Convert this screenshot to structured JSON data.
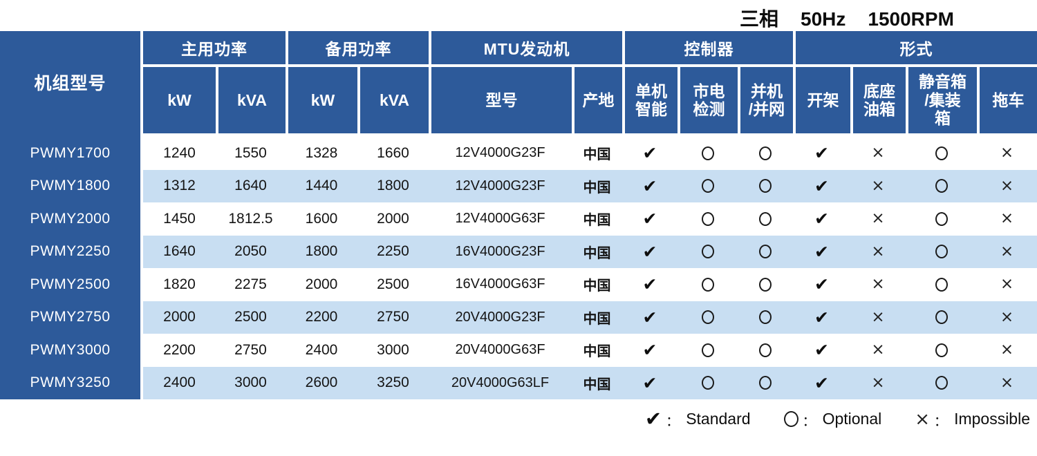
{
  "title": {
    "phase": "三相",
    "frequency": "50Hz",
    "speed": "1500RPM"
  },
  "table": {
    "model_header": "机组型号",
    "groups": [
      {
        "label": "主用功率",
        "subs": [
          "kW",
          "kVA"
        ]
      },
      {
        "label": "备用功率",
        "subs": [
          "kW",
          "kVA"
        ]
      },
      {
        "label": "MTU发动机",
        "subs": [
          "型号",
          "产地"
        ]
      },
      {
        "label": "控制器",
        "subs": [
          "单机\n智能",
          "市电\n检测",
          "并机\n/并网"
        ]
      },
      {
        "label": "形式",
        "subs": [
          "开架",
          "底座\n油箱",
          "静音箱\n/集装\n箱",
          "拖车"
        ]
      }
    ],
    "rows": [
      {
        "model": "PWMY1700",
        "prime_kw": "1240",
        "prime_kva": "1550",
        "standby_kw": "1328",
        "standby_kva": "1660",
        "engine": "12V4000G23F",
        "origin": "中国",
        "options": [
          "check",
          "circle",
          "circle",
          "check",
          "cross",
          "circle",
          "cross"
        ]
      },
      {
        "model": "PWMY1800",
        "prime_kw": "1312",
        "prime_kva": "1640",
        "standby_kw": "1440",
        "standby_kva": "1800",
        "engine": "12V4000G23F",
        "origin": "中国",
        "options": [
          "check",
          "circle",
          "circle",
          "check",
          "cross",
          "circle",
          "cross"
        ]
      },
      {
        "model": "PWMY2000",
        "prime_kw": "1450",
        "prime_kva": "1812.5",
        "standby_kw": "1600",
        "standby_kva": "2000",
        "engine": "12V4000G63F",
        "origin": "中国",
        "options": [
          "check",
          "circle",
          "circle",
          "check",
          "cross",
          "circle",
          "cross"
        ]
      },
      {
        "model": "PWMY2250",
        "prime_kw": "1640",
        "prime_kva": "2050",
        "standby_kw": "1800",
        "standby_kva": "2250",
        "engine": "16V4000G23F",
        "origin": "中国",
        "options": [
          "check",
          "circle",
          "circle",
          "check",
          "cross",
          "circle",
          "cross"
        ]
      },
      {
        "model": "PWMY2500",
        "prime_kw": "1820",
        "prime_kva": "2275",
        "standby_kw": "2000",
        "standby_kva": "2500",
        "engine": "16V4000G63F",
        "origin": "中国",
        "options": [
          "check",
          "circle",
          "circle",
          "check",
          "cross",
          "circle",
          "cross"
        ]
      },
      {
        "model": "PWMY2750",
        "prime_kw": "2000",
        "prime_kva": "2500",
        "standby_kw": "2200",
        "standby_kva": "2750",
        "engine": "20V4000G23F",
        "origin": "中国",
        "options": [
          "check",
          "circle",
          "circle",
          "check",
          "cross",
          "circle",
          "cross"
        ]
      },
      {
        "model": "PWMY3000",
        "prime_kw": "2200",
        "prime_kva": "2750",
        "standby_kw": "2400",
        "standby_kva": "3000",
        "engine": "20V4000G63F",
        "origin": "中国",
        "options": [
          "check",
          "circle",
          "circle",
          "check",
          "cross",
          "circle",
          "cross"
        ]
      },
      {
        "model": "PWMY3250",
        "prime_kw": "2400",
        "prime_kva": "3000",
        "standby_kw": "2600",
        "standby_kva": "3250",
        "engine": "20V4000G63LF",
        "origin": "中国",
        "options": [
          "check",
          "circle",
          "circle",
          "check",
          "cross",
          "circle",
          "cross"
        ]
      }
    ]
  },
  "legend": {
    "separator": "：",
    "items": [
      {
        "symbol": "check",
        "label": "Standard"
      },
      {
        "symbol": "circle",
        "label": "Optional"
      },
      {
        "symbol": "cross",
        "label": "Impossible"
      }
    ]
  },
  "colors": {
    "header_blue": "#2d5a9a",
    "stripe_blue": "#c8def2",
    "text_dark": "#111111",
    "background": "#ffffff"
  }
}
